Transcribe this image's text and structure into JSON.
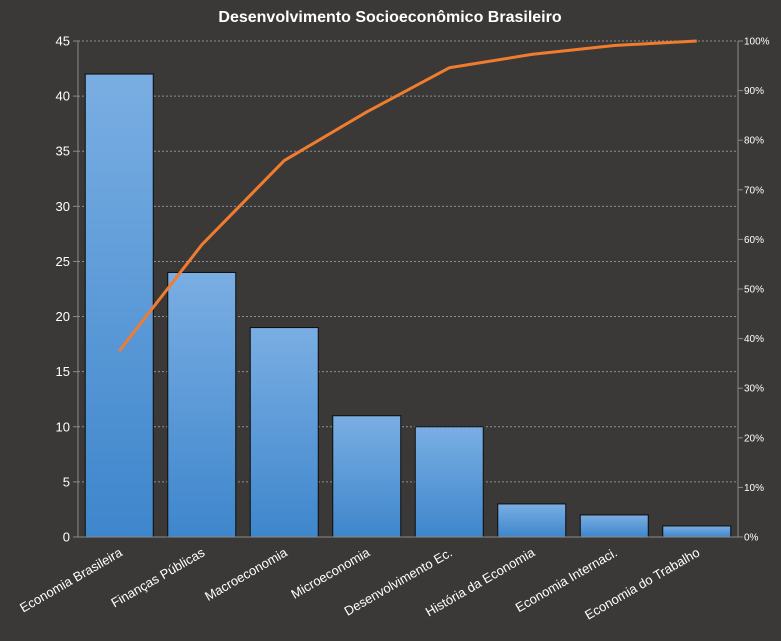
{
  "chart_data": {
    "type": "pareto",
    "title": "Desenvolvimento  Socioeconômico Brasileiro",
    "categories": [
      "Economia Brasileira",
      "Finanças Públicas",
      "Macroeconomia",
      "Microeconomia",
      "Desenvolvimento Ec.",
      "História da Economia",
      "Economia Internaci.",
      "Economia do Trabalho"
    ],
    "series": [
      {
        "type": "bar",
        "values": [
          42,
          24,
          19,
          11,
          10,
          3,
          2,
          1
        ]
      },
      {
        "type": "line",
        "axis": "right",
        "values": [
          37.5,
          58.9,
          75.9,
          85.7,
          94.6,
          97.3,
          99.1,
          100.0
        ]
      }
    ],
    "ylim": [
      0,
      45
    ],
    "yticks": [
      "0",
      "5",
      "10",
      "15",
      "20",
      "25",
      "30",
      "35",
      "40",
      "45"
    ],
    "y2lim": [
      0,
      100
    ],
    "y2ticks": [
      "0%",
      "10%",
      "20%",
      "30%",
      "40%",
      "50%",
      "60%",
      "70%",
      "80%",
      "90%",
      "100%"
    ],
    "grid": true,
    "legend": "none",
    "colors": {
      "background": "#3a3937",
      "bar_top": "#7aaee3",
      "bar_bottom": "#3e86cc",
      "bar_edge": "#0d0d0d",
      "line": "#ef7c2f",
      "grid": "#8f8f8f",
      "text": "#ffffff"
    }
  }
}
